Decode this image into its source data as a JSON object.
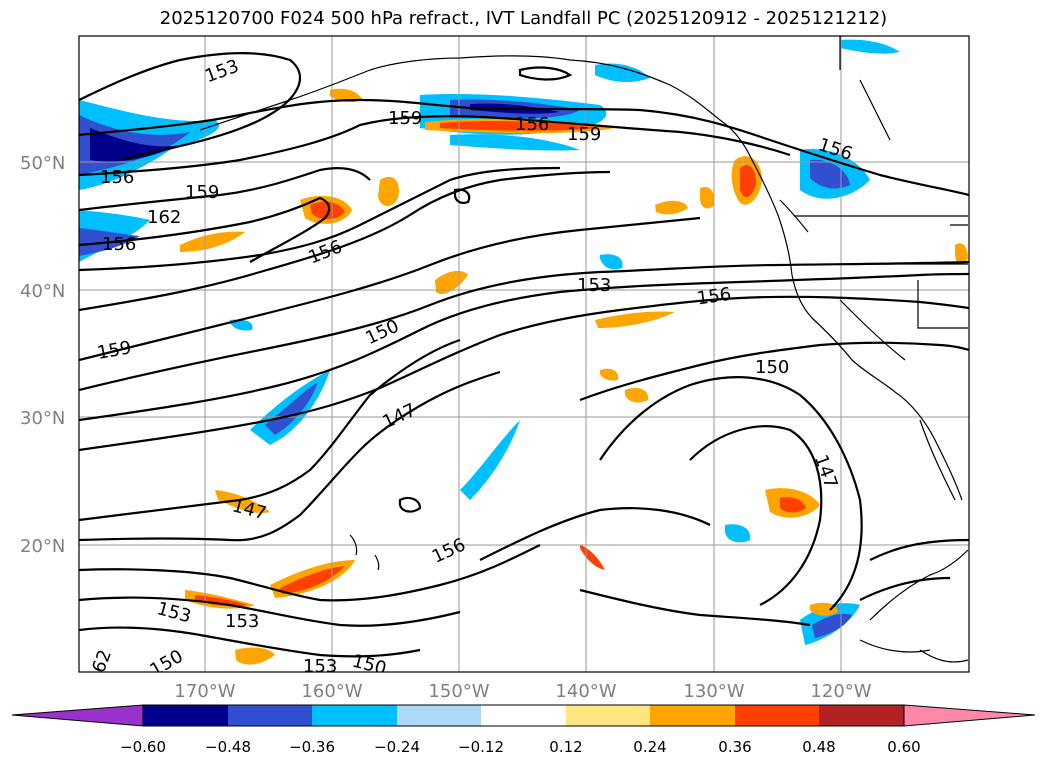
{
  "title": "2025120700 F024 500 hPa refract., IVT Landfall PC (2025120912 - 2025121212)",
  "lat_labels": [
    "50°N",
    "40°N",
    "30°N",
    "20°N"
  ],
  "lon_labels": [
    "170°W",
    "160°W",
    "150°W",
    "140°W",
    "130°W",
    "120°W"
  ],
  "colorbar": {
    "ticks": [
      "−0.60",
      "−0.48",
      "−0.36",
      "−0.24",
      "−0.12",
      "0.12",
      "0.24",
      "0.36",
      "0.48",
      "0.60"
    ],
    "colors": [
      "#9932cc",
      "#00008b",
      "#3050d0",
      "#00bfff",
      "#add8f7",
      "#ffffff",
      "#ffe680",
      "#ffa500",
      "#ff4000",
      "#b22222",
      "#ff88aa"
    ]
  },
  "contour_labels": [
    {
      "text": "153"
    },
    {
      "text": "159"
    },
    {
      "text": "156"
    },
    {
      "text": "159"
    },
    {
      "text": "156"
    },
    {
      "text": "156"
    },
    {
      "text": "159"
    },
    {
      "text": "162"
    },
    {
      "text": "156"
    },
    {
      "text": "156"
    },
    {
      "text": "153"
    },
    {
      "text": "156"
    },
    {
      "text": "159"
    },
    {
      "text": "150"
    },
    {
      "text": "150"
    },
    {
      "text": "147"
    },
    {
      "text": "147"
    },
    {
      "text": "147"
    },
    {
      "text": "156"
    },
    {
      "text": "153"
    },
    {
      "text": "153"
    },
    {
      "text": "62"
    },
    {
      "text": "150"
    },
    {
      "text": "153"
    },
    {
      "text": "150"
    }
  ]
}
